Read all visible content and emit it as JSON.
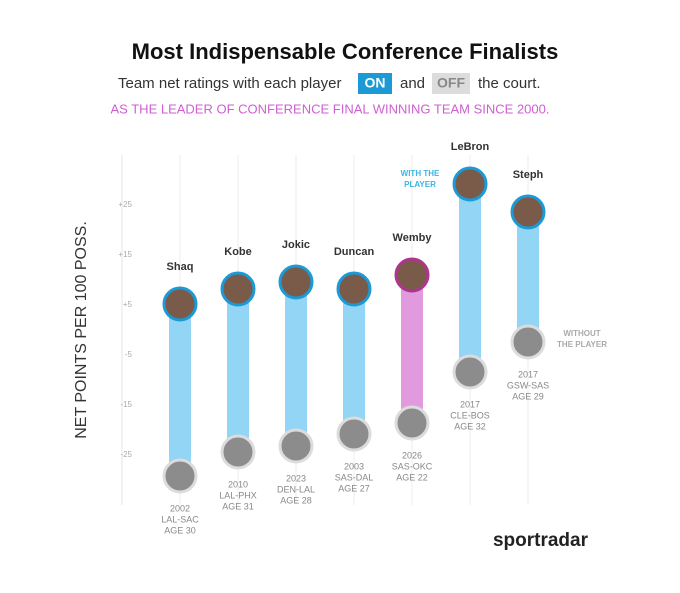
{
  "chart_data": {
    "type": "dumbbell",
    "title": "Most Indispensable Conference Finalists",
    "subtitle_parts": [
      "Team net ratings with each player",
      "and",
      "the court."
    ],
    "subtitle2": "AS THE LEADER OF CONFERENCE FINAL WINNING TEAM SINCE 2000.",
    "y_label": "NET POINTS PER 100 POSS.",
    "categories": [
      "Shaq",
      "Kobe",
      "Jokic",
      "Duncan",
      "Wemby",
      "LeBron",
      "Steph"
    ],
    "details": [
      [
        "2002",
        "LAL-SAC",
        "AGE 30"
      ],
      [
        "2010",
        "LAL-PHX",
        "AGE 31"
      ],
      [
        "2023",
        "DEN-LAL",
        "AGE 28"
      ],
      [
        "2003",
        "SAS-DAL",
        "AGE 27"
      ],
      [
        "2026",
        "SAS-OKC",
        "AGE 22"
      ],
      [
        "2017",
        "CLE-BOS",
        "AGE 32"
      ],
      [
        "2017",
        "GSW-SAS",
        "AGE 29"
      ]
    ],
    "series": [
      {
        "name": "ON",
        "color": "#1b9ad6",
        "values": [
          5.2,
          8.2,
          9.6,
          8.2,
          11,
          29.2,
          23.6
        ]
      },
      {
        "name": "OFF",
        "color": "#dcdcdc",
        "values": [
          -29.2,
          -24.4,
          -23.2,
          -20.8,
          -18.6,
          -8.4,
          -2.4
        ]
      }
    ],
    "bar_colors": [
      "#93d5f5",
      "#93d5f5",
      "#93d5f5",
      "#93d5f5",
      "#e29ade",
      "#93d5f5",
      "#93d5f5"
    ],
    "ylim": [
      -35,
      35
    ],
    "yticks": [
      {
        "value": 25,
        "label": "+25"
      },
      {
        "value": 15,
        "label": "+15"
      },
      {
        "value": 5,
        "label": "+5"
      },
      -5,
      -15,
      -25
    ],
    "annotations": [
      {
        "lines": [
          "WITH THE",
          "PLAYER"
        ],
        "color": "#3ab5e6"
      },
      {
        "lines": [
          "WITHOUT",
          "THE PLAYER"
        ],
        "color": "#aaaaaa"
      }
    ],
    "logo": "sportradar"
  }
}
